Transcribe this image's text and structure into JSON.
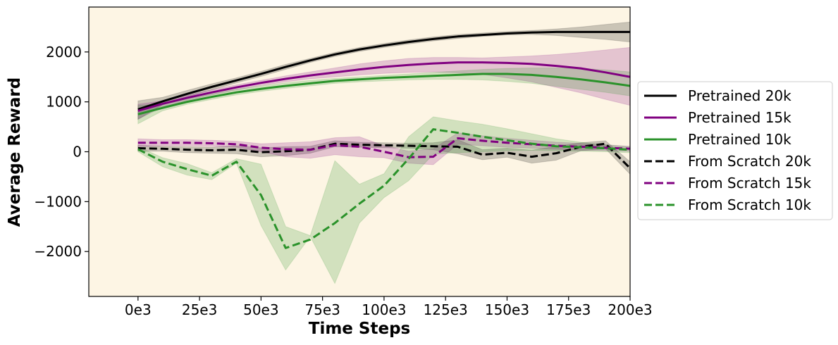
{
  "chart_data": {
    "type": "line",
    "title": "",
    "xlabel": "Time Steps",
    "ylabel": "Average Reward",
    "xlim": [
      -20000,
      200000
    ],
    "ylim": [
      -2900,
      2900
    ],
    "x_ticks": [
      {
        "value": 0,
        "label": "0e3"
      },
      {
        "value": 25000,
        "label": "25e3"
      },
      {
        "value": 50000,
        "label": "50e3"
      },
      {
        "value": 75000,
        "label": "75e3"
      },
      {
        "value": 100000,
        "label": "100e3"
      },
      {
        "value": 125000,
        "label": "125e3"
      },
      {
        "value": 150000,
        "label": "150e3"
      },
      {
        "value": 175000,
        "label": "175e3"
      },
      {
        "value": 200000,
        "label": "200e3"
      }
    ],
    "y_ticks": [
      {
        "value": -2000,
        "label": "−2000"
      },
      {
        "value": -1000,
        "label": "−1000"
      },
      {
        "value": 0,
        "label": "0"
      },
      {
        "value": 1000,
        "label": "1000"
      },
      {
        "value": 2000,
        "label": "2000"
      }
    ],
    "grid": false,
    "legend_position": "right",
    "plot_background": "#fdf5e4",
    "series": [
      {
        "name": "Pretrained 20k",
        "color": "#000000",
        "dash": "solid",
        "x": [
          0,
          10000,
          20000,
          30000,
          40000,
          50000,
          60000,
          70000,
          80000,
          90000,
          100000,
          110000,
          120000,
          130000,
          140000,
          150000,
          160000,
          170000,
          180000,
          190000,
          200000
        ],
        "y": [
          850,
          1010,
          1160,
          1300,
          1430,
          1560,
          1700,
          1830,
          1950,
          2050,
          2130,
          2200,
          2260,
          2310,
          2340,
          2370,
          2390,
          2400,
          2400,
          2400,
          2400
        ],
        "lower": [
          650,
          940,
          1100,
          1240,
          1380,
          1510,
          1650,
          1790,
          1910,
          2010,
          2090,
          2160,
          2220,
          2270,
          2310,
          2340,
          2350,
          2330,
          2290,
          2250,
          2200
        ],
        "upper": [
          1020,
          1090,
          1230,
          1360,
          1480,
          1610,
          1750,
          1870,
          1990,
          2090,
          2170,
          2240,
          2300,
          2350,
          2380,
          2410,
          2430,
          2460,
          2500,
          2550,
          2600
        ]
      },
      {
        "name": "Pretrained 15k",
        "color": "#800080",
        "dash": "solid",
        "x": [
          0,
          10000,
          20000,
          30000,
          40000,
          50000,
          60000,
          70000,
          80000,
          90000,
          100000,
          110000,
          120000,
          130000,
          140000,
          150000,
          160000,
          170000,
          180000,
          190000,
          200000
        ],
        "y": [
          820,
          960,
          1080,
          1190,
          1290,
          1380,
          1460,
          1530,
          1590,
          1650,
          1700,
          1740,
          1770,
          1790,
          1790,
          1780,
          1760,
          1720,
          1670,
          1590,
          1500
        ],
        "lower": [
          650,
          900,
          1030,
          1140,
          1240,
          1330,
          1400,
          1460,
          1500,
          1540,
          1570,
          1590,
          1600,
          1580,
          1550,
          1480,
          1400,
          1290,
          1180,
          1050,
          930
        ],
        "upper": [
          950,
          1020,
          1130,
          1240,
          1340,
          1430,
          1520,
          1600,
          1680,
          1760,
          1820,
          1870,
          1890,
          1890,
          1880,
          1900,
          1920,
          1950,
          1990,
          2040,
          2090
        ]
      },
      {
        "name": "Pretrained 10k",
        "color": "#2a922a",
        "dash": "solid",
        "x": [
          0,
          10000,
          20000,
          30000,
          40000,
          50000,
          60000,
          70000,
          80000,
          90000,
          100000,
          110000,
          120000,
          130000,
          140000,
          150000,
          160000,
          170000,
          180000,
          190000,
          200000
        ],
        "y": [
          750,
          880,
          1000,
          1100,
          1190,
          1260,
          1320,
          1370,
          1420,
          1450,
          1480,
          1500,
          1520,
          1540,
          1560,
          1560,
          1540,
          1500,
          1450,
          1390,
          1320
        ],
        "lower": [
          560,
          820,
          950,
          1050,
          1140,
          1210,
          1270,
          1320,
          1370,
          1400,
          1420,
          1440,
          1450,
          1450,
          1440,
          1410,
          1370,
          1310,
          1250,
          1190,
          1120
        ],
        "upper": [
          930,
          950,
          1060,
          1160,
          1250,
          1320,
          1380,
          1430,
          1470,
          1500,
          1530,
          1560,
          1590,
          1620,
          1650,
          1670,
          1680,
          1680,
          1670,
          1640,
          1600
        ]
      },
      {
        "name": "From Scratch 20k",
        "color": "#000000",
        "dash": "dashed",
        "x": [
          0,
          10000,
          20000,
          30000,
          40000,
          50000,
          60000,
          70000,
          80000,
          90000,
          100000,
          110000,
          120000,
          130000,
          140000,
          150000,
          160000,
          170000,
          180000,
          190000,
          200000
        ],
        "y": [
          70,
          60,
          40,
          30,
          40,
          -10,
          10,
          40,
          160,
          140,
          130,
          120,
          110,
          100,
          -60,
          -20,
          -100,
          -30,
          100,
          160,
          -330
        ],
        "lower": [
          10,
          10,
          -20,
          -30,
          -40,
          -100,
          -80,
          -30,
          100,
          90,
          80,
          70,
          40,
          -40,
          -160,
          -110,
          -230,
          -170,
          20,
          60,
          -450
        ],
        "upper": [
          130,
          110,
          100,
          90,
          120,
          80,
          100,
          110,
          220,
          190,
          180,
          170,
          180,
          240,
          40,
          70,
          30,
          110,
          180,
          220,
          -200
        ]
      },
      {
        "name": "From Scratch 15k",
        "color": "#800080",
        "dash": "dashed",
        "x": [
          0,
          10000,
          20000,
          30000,
          40000,
          50000,
          60000,
          70000,
          80000,
          90000,
          100000,
          110000,
          120000,
          130000,
          140000,
          150000,
          160000,
          170000,
          180000,
          190000,
          200000
        ],
        "y": [
          180,
          180,
          180,
          170,
          150,
          80,
          50,
          40,
          130,
          100,
          0,
          -110,
          -100,
          270,
          220,
          180,
          150,
          120,
          100,
          80,
          60
        ],
        "lower": [
          100,
          120,
          120,
          110,
          90,
          0,
          -100,
          -130,
          -60,
          -100,
          -120,
          -230,
          -260,
          150,
          120,
          90,
          70,
          50,
          30,
          20,
          10
        ],
        "upper": [
          260,
          240,
          240,
          230,
          210,
          160,
          180,
          200,
          280,
          300,
          120,
          10,
          60,
          380,
          320,
          270,
          230,
          190,
          170,
          140,
          110
        ]
      },
      {
        "name": "From Scratch 10k",
        "color": "#2a922a",
        "dash": "dashed",
        "x": [
          0,
          10000,
          20000,
          30000,
          40000,
          50000,
          60000,
          70000,
          80000,
          90000,
          100000,
          110000,
          120000,
          130000,
          140000,
          150000,
          160000,
          170000,
          180000,
          190000,
          200000
        ],
        "y": [
          50,
          -200,
          -350,
          -480,
          -200,
          -870,
          -1930,
          -1760,
          -1430,
          -1040,
          -680,
          -140,
          450,
          380,
          300,
          230,
          160,
          110,
          90,
          70,
          40
        ],
        "lower": [
          0,
          -300,
          -470,
          -560,
          -230,
          -1480,
          -2370,
          -1700,
          -2640,
          -1430,
          -920,
          -580,
          -50,
          -20,
          0,
          20,
          30,
          20,
          10,
          0,
          -20
        ],
        "upper": [
          100,
          -120,
          -240,
          -420,
          -140,
          -250,
          -1500,
          -1680,
          -180,
          -650,
          -440,
          300,
          700,
          620,
          550,
          460,
          360,
          260,
          190,
          140,
          100
        ]
      }
    ]
  }
}
